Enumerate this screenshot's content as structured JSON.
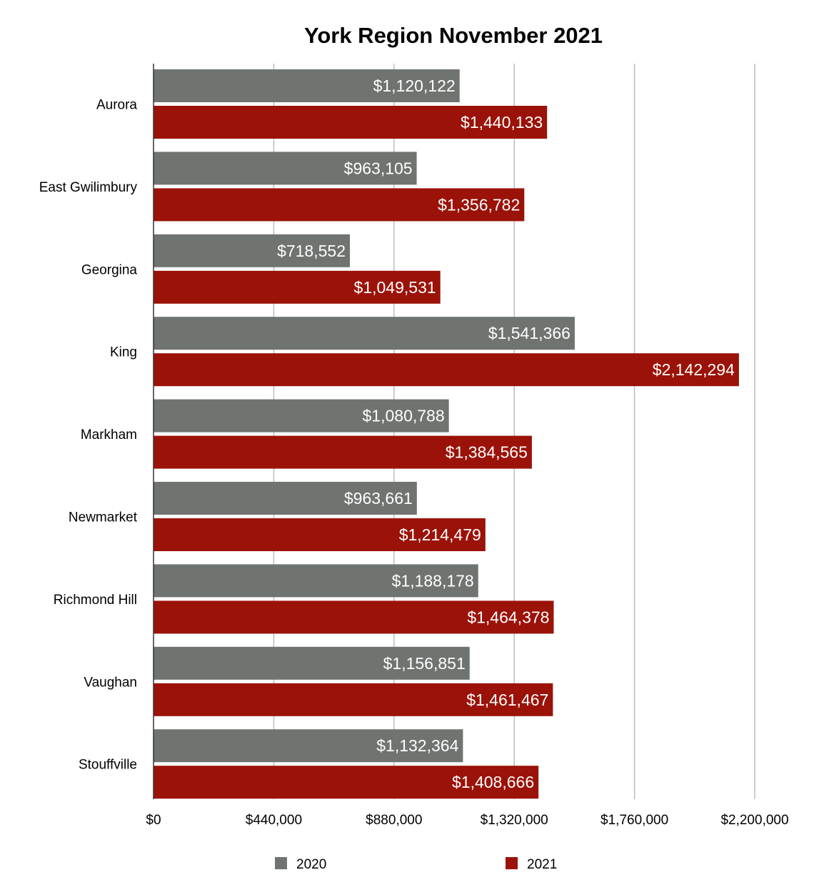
{
  "chart_data": {
    "type": "bar",
    "orientation": "horizontal",
    "title": "York Region November 2021",
    "xlabel": "",
    "ylabel": "",
    "categories": [
      "Aurora",
      "East Gwilimbury",
      "Georgina",
      "King",
      "Markham",
      "Newmarket",
      "Richmond Hill",
      "Vaughan",
      "Stouffville"
    ],
    "series": [
      {
        "name": "2020",
        "color": "#6f7470",
        "values": [
          1120122,
          963105,
          718552,
          1541366,
          1080788,
          963661,
          1188178,
          1156851,
          1132364
        ],
        "data_labels": [
          "$1,120,122",
          "$963,105",
          "$718,552",
          "$1,541,366",
          "$1,080,788",
          "$963,661",
          "$1,188,178",
          "$1,156,851",
          "$1,132,364"
        ]
      },
      {
        "name": "2021",
        "color": "#9b1208",
        "values": [
          1440133,
          1356782,
          1049531,
          2142294,
          1384565,
          1214479,
          1464378,
          1461467,
          1408666
        ],
        "data_labels": [
          "$1,440,133",
          "$1,356,782",
          "$1,049,531",
          "$2,142,294",
          "$1,384,565",
          "$1,214,479",
          "$1,464,378",
          "$1,461,467",
          "$1,408,666"
        ]
      }
    ],
    "xlim": [
      0,
      2200000
    ],
    "x_ticks": [
      0,
      440000,
      880000,
      1320000,
      1760000,
      2200000
    ],
    "x_tick_labels": [
      "$0",
      "$440,000",
      "$880,000",
      "$1,320,000",
      "$1,760,000",
      "$2,200,000"
    ],
    "grid": true,
    "legend_position": "bottom"
  }
}
